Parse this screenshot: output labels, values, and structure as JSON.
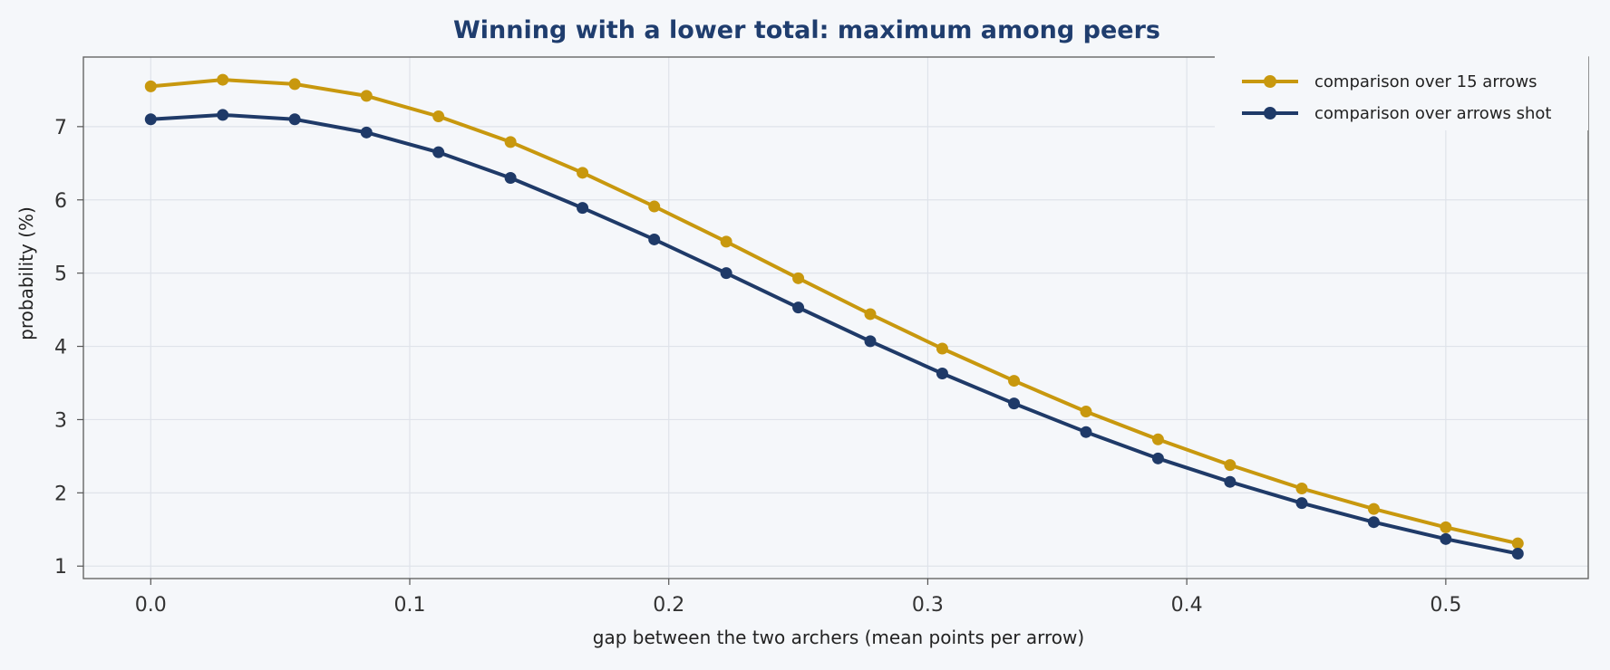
{
  "chart_data": {
    "type": "line",
    "title": "Winning with a lower total: maximum among peers",
    "xlabel": "gap between the two archers (mean points per arrow)",
    "ylabel": "probability (%)",
    "xlim": [
      -0.026,
      0.555
    ],
    "ylim": [
      0.83,
      7.95
    ],
    "xticks": [
      0.0,
      0.1,
      0.2,
      0.3,
      0.4,
      0.5
    ],
    "xtick_labels": [
      "0.0",
      "0.1",
      "0.2",
      "0.3",
      "0.4",
      "0.5"
    ],
    "yticks": [
      1,
      2,
      3,
      4,
      5,
      6,
      7
    ],
    "ytick_labels": [
      "1",
      "2",
      "3",
      "4",
      "5",
      "6",
      "7"
    ],
    "grid": true,
    "legend_position": "top-right",
    "x": [
      0.0,
      0.0278,
      0.0556,
      0.0833,
      0.1111,
      0.1389,
      0.1667,
      0.1944,
      0.2222,
      0.25,
      0.2778,
      0.3056,
      0.3333,
      0.3611,
      0.3889,
      0.4167,
      0.4444,
      0.4722,
      0.5,
      0.5278
    ],
    "series": [
      {
        "name": "comparison over 15 arrows",
        "color": "#c8980e",
        "values": [
          7.55,
          7.64,
          7.58,
          7.42,
          7.14,
          6.79,
          6.37,
          5.91,
          5.43,
          4.93,
          4.44,
          3.97,
          3.53,
          3.11,
          2.73,
          2.38,
          2.06,
          1.78,
          1.53,
          1.31
        ]
      },
      {
        "name": "comparison over arrows shot",
        "color": "#1f3a68",
        "values": [
          7.1,
          7.16,
          7.1,
          6.92,
          6.65,
          6.3,
          5.89,
          5.46,
          5.0,
          4.53,
          4.07,
          3.63,
          3.22,
          2.83,
          2.47,
          2.15,
          1.86,
          1.6,
          1.37,
          1.17
        ]
      }
    ]
  }
}
